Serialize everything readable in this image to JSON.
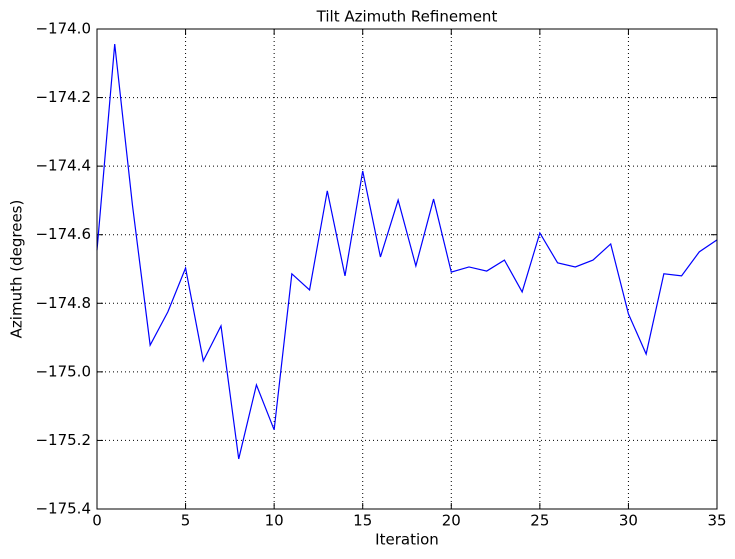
{
  "chart_data": {
    "type": "line",
    "title": "Tilt Azimuth Refinement",
    "x_label": "Iteration",
    "y_label": "Azimuth (degrees)",
    "x": [
      0,
      1,
      2,
      3,
      4,
      5,
      6,
      7,
      8,
      9,
      10,
      11,
      12,
      13,
      14,
      15,
      16,
      17,
      18,
      19,
      20,
      21,
      22,
      23,
      24,
      25,
      26,
      27,
      28,
      29,
      30,
      31,
      32,
      33,
      34,
      35
    ],
    "series": [
      {
        "name": "Azimuth",
        "color": "#0000ff",
        "values": [
          -174.645,
          -174.044,
          -174.513,
          -174.922,
          -174.825,
          -174.697,
          -174.968,
          -174.866,
          -175.254,
          -175.038,
          -175.169,
          -174.714,
          -174.761,
          -174.472,
          -174.72,
          -174.414,
          -174.665,
          -174.499,
          -174.691,
          -174.496,
          -174.709,
          -174.694,
          -174.706,
          -174.674,
          -174.767,
          -174.595,
          -174.682,
          -174.694,
          -174.674,
          -174.627,
          -174.831,
          -174.948,
          -174.714,
          -174.72,
          -174.65,
          -174.615
        ]
      }
    ],
    "xlim": [
      0,
      35
    ],
    "ylim": [
      -175.4,
      -174.0
    ],
    "xticks": [
      0,
      5,
      10,
      15,
      20,
      25,
      30,
      35
    ],
    "yticks": [
      {
        "value": -175.4,
        "label": "−175.4"
      },
      {
        "value": -175.2,
        "label": "−175.2"
      },
      {
        "value": -175.0,
        "label": "−175.0"
      },
      {
        "value": -174.8,
        "label": "−174.8"
      },
      {
        "value": -174.6,
        "label": "−174.6"
      },
      {
        "value": -174.4,
        "label": "−174.4"
      },
      {
        "value": -174.2,
        "label": "−174.2"
      },
      {
        "value": -174.0,
        "label": "−174.0"
      }
    ],
    "grid": true
  }
}
